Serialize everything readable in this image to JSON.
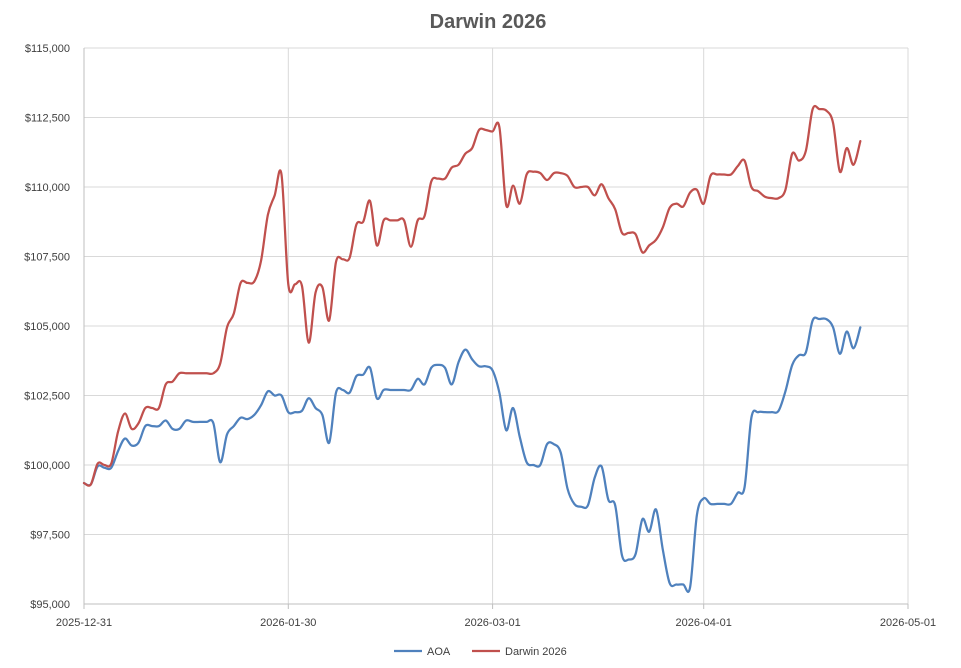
{
  "chart_data": {
    "type": "line",
    "title": "Darwin 2026",
    "xlabel": "",
    "ylabel": "",
    "x_ticks": [
      "2025-12-31",
      "2026-01-30",
      "2026-03-01",
      "2026-04-01",
      "2026-05-01"
    ],
    "y_ticks": [
      "$95,000",
      "$97,500",
      "$100,000",
      "$102,500",
      "$105,000",
      "$107,500",
      "$110,000",
      "$112,500",
      "$115,000"
    ],
    "xlim": [
      "2025-12-31",
      "2026-05-01"
    ],
    "ylim": [
      95000,
      115000
    ],
    "grid": true,
    "legend": "bottom",
    "colors": {
      "AOA": "#4f81bd",
      "Darwin 2026": "#c0504d"
    },
    "series": [
      {
        "name": "AOA",
        "points": [
          [
            "2025-12-31",
            99350
          ],
          [
            "2026-01-01",
            99300
          ],
          [
            "2026-01-02",
            99950
          ],
          [
            "2026-01-03",
            99900
          ],
          [
            "2026-01-04",
            99900
          ],
          [
            "2026-01-05",
            100500
          ],
          [
            "2026-01-06",
            100950
          ],
          [
            "2026-01-07",
            100700
          ],
          [
            "2026-01-08",
            100800
          ],
          [
            "2026-01-09",
            101400
          ],
          [
            "2026-01-10",
            101400
          ],
          [
            "2026-01-11",
            101400
          ],
          [
            "2026-01-12",
            101600
          ],
          [
            "2026-01-13",
            101300
          ],
          [
            "2026-01-14",
            101300
          ],
          [
            "2026-01-15",
            101600
          ],
          [
            "2026-01-16",
            101550
          ],
          [
            "2026-01-17",
            101550
          ],
          [
            "2026-01-18",
            101550
          ],
          [
            "2026-01-19",
            101500
          ],
          [
            "2026-01-20",
            100100
          ],
          [
            "2026-01-21",
            101100
          ],
          [
            "2026-01-22",
            101400
          ],
          [
            "2026-01-23",
            101700
          ],
          [
            "2026-01-24",
            101650
          ],
          [
            "2026-01-25",
            101800
          ],
          [
            "2026-01-26",
            102150
          ],
          [
            "2026-01-27",
            102650
          ],
          [
            "2026-01-28",
            102500
          ],
          [
            "2026-01-29",
            102500
          ],
          [
            "2026-01-30",
            101900
          ],
          [
            "2026-01-31",
            101900
          ],
          [
            "2026-02-01",
            101950
          ],
          [
            "2026-02-02",
            102400
          ],
          [
            "2026-02-03",
            102050
          ],
          [
            "2026-02-04",
            101800
          ],
          [
            "2026-02-05",
            100800
          ],
          [
            "2026-02-06",
            102600
          ],
          [
            "2026-02-07",
            102700
          ],
          [
            "2026-02-08",
            102600
          ],
          [
            "2026-02-09",
            103200
          ],
          [
            "2026-02-10",
            103250
          ],
          [
            "2026-02-11",
            103500
          ],
          [
            "2026-02-12",
            102400
          ],
          [
            "2026-02-13",
            102700
          ],
          [
            "2026-02-14",
            102700
          ],
          [
            "2026-02-15",
            102700
          ],
          [
            "2026-02-16",
            102700
          ],
          [
            "2026-02-17",
            102700
          ],
          [
            "2026-02-18",
            103100
          ],
          [
            "2026-02-19",
            102900
          ],
          [
            "2026-02-20",
            103500
          ],
          [
            "2026-02-21",
            103600
          ],
          [
            "2026-02-22",
            103500
          ],
          [
            "2026-02-23",
            102900
          ],
          [
            "2026-02-24",
            103700
          ],
          [
            "2026-02-25",
            104150
          ],
          [
            "2026-02-26",
            103800
          ],
          [
            "2026-02-27",
            103550
          ],
          [
            "2026-02-28",
            103550
          ],
          [
            "2026-03-01",
            103400
          ],
          [
            "2026-03-02",
            102600
          ],
          [
            "2026-03-03",
            101250
          ],
          [
            "2026-03-04",
            102050
          ],
          [
            "2026-03-05",
            101000
          ],
          [
            "2026-03-06",
            100100
          ],
          [
            "2026-03-07",
            100000
          ],
          [
            "2026-03-08",
            100000
          ],
          [
            "2026-03-09",
            100750
          ],
          [
            "2026-03-10",
            100750
          ],
          [
            "2026-03-11",
            100450
          ],
          [
            "2026-03-12",
            99150
          ],
          [
            "2026-03-13",
            98600
          ],
          [
            "2026-03-14",
            98500
          ],
          [
            "2026-03-15",
            98550
          ],
          [
            "2026-03-16",
            99550
          ],
          [
            "2026-03-17",
            99950
          ],
          [
            "2026-03-18",
            98750
          ],
          [
            "2026-03-19",
            98550
          ],
          [
            "2026-03-20",
            96750
          ],
          [
            "2026-03-21",
            96600
          ],
          [
            "2026-03-22",
            96800
          ],
          [
            "2026-03-23",
            98050
          ],
          [
            "2026-03-24",
            97600
          ],
          [
            "2026-03-25",
            98400
          ],
          [
            "2026-03-26",
            96950
          ],
          [
            "2026-03-27",
            95750
          ],
          [
            "2026-03-28",
            95700
          ],
          [
            "2026-03-29",
            95700
          ],
          [
            "2026-03-30",
            95600
          ],
          [
            "2026-03-31",
            98200
          ],
          [
            "2026-04-01",
            98800
          ],
          [
            "2026-04-02",
            98600
          ],
          [
            "2026-04-03",
            98600
          ],
          [
            "2026-04-04",
            98600
          ],
          [
            "2026-04-05",
            98600
          ],
          [
            "2026-04-06",
            99000
          ],
          [
            "2026-04-07",
            99200
          ],
          [
            "2026-04-08",
            101700
          ],
          [
            "2026-04-09",
            101900
          ],
          [
            "2026-04-10",
            101900
          ],
          [
            "2026-04-11",
            101900
          ],
          [
            "2026-04-12",
            101950
          ],
          [
            "2026-04-13",
            102650
          ],
          [
            "2026-04-14",
            103600
          ],
          [
            "2026-04-15",
            103950
          ],
          [
            "2026-04-16",
            104050
          ],
          [
            "2026-04-17",
            105200
          ],
          [
            "2026-04-18",
            105250
          ],
          [
            "2026-04-19",
            105250
          ],
          [
            "2026-04-20",
            104950
          ],
          [
            "2026-04-21",
            104000
          ],
          [
            "2026-04-22",
            104800
          ],
          [
            "2026-04-23",
            104200
          ],
          [
            "2026-04-24",
            104950
          ]
        ]
      },
      {
        "name": "Darwin 2026",
        "points": [
          [
            "2025-12-31",
            99350
          ],
          [
            "2026-01-01",
            99300
          ],
          [
            "2026-01-02",
            100050
          ],
          [
            "2026-01-03",
            100000
          ],
          [
            "2026-01-04",
            100050
          ],
          [
            "2026-01-05",
            101200
          ],
          [
            "2026-01-06",
            101850
          ],
          [
            "2026-01-07",
            101300
          ],
          [
            "2026-01-08",
            101500
          ],
          [
            "2026-01-09",
            102050
          ],
          [
            "2026-01-10",
            102050
          ],
          [
            "2026-01-11",
            102050
          ],
          [
            "2026-01-12",
            102900
          ],
          [
            "2026-01-13",
            103000
          ],
          [
            "2026-01-14",
            103300
          ],
          [
            "2026-01-15",
            103300
          ],
          [
            "2026-01-16",
            103300
          ],
          [
            "2026-01-17",
            103300
          ],
          [
            "2026-01-18",
            103300
          ],
          [
            "2026-01-19",
            103300
          ],
          [
            "2026-01-20",
            103650
          ],
          [
            "2026-01-21",
            104950
          ],
          [
            "2026-01-22",
            105450
          ],
          [
            "2026-01-23",
            106550
          ],
          [
            "2026-01-24",
            106550
          ],
          [
            "2026-01-25",
            106600
          ],
          [
            "2026-01-26",
            107350
          ],
          [
            "2026-01-27",
            109000
          ],
          [
            "2026-01-28",
            109700
          ],
          [
            "2026-01-29",
            110450
          ],
          [
            "2026-01-30",
            106500
          ],
          [
            "2026-01-31",
            106500
          ],
          [
            "2026-02-01",
            106450
          ],
          [
            "2026-02-02",
            104400
          ],
          [
            "2026-02-03",
            106200
          ],
          [
            "2026-02-04",
            106400
          ],
          [
            "2026-02-05",
            105200
          ],
          [
            "2026-02-06",
            107300
          ],
          [
            "2026-02-07",
            107400
          ],
          [
            "2026-02-08",
            107450
          ],
          [
            "2026-02-09",
            108650
          ],
          [
            "2026-02-10",
            108750
          ],
          [
            "2026-02-11",
            109500
          ],
          [
            "2026-02-12",
            107900
          ],
          [
            "2026-02-13",
            108800
          ],
          [
            "2026-02-14",
            108800
          ],
          [
            "2026-02-15",
            108800
          ],
          [
            "2026-02-16",
            108800
          ],
          [
            "2026-02-17",
            107850
          ],
          [
            "2026-02-18",
            108800
          ],
          [
            "2026-02-19",
            108950
          ],
          [
            "2026-02-20",
            110200
          ],
          [
            "2026-02-21",
            110300
          ],
          [
            "2026-02-22",
            110300
          ],
          [
            "2026-02-23",
            110700
          ],
          [
            "2026-02-24",
            110800
          ],
          [
            "2026-02-25",
            111200
          ],
          [
            "2026-02-26",
            111400
          ],
          [
            "2026-02-27",
            112050
          ],
          [
            "2026-02-28",
            112050
          ],
          [
            "2026-03-01",
            112000
          ],
          [
            "2026-03-02",
            112150
          ],
          [
            "2026-03-03",
            109350
          ],
          [
            "2026-03-04",
            110050
          ],
          [
            "2026-03-05",
            109400
          ],
          [
            "2026-03-06",
            110450
          ],
          [
            "2026-03-07",
            110550
          ],
          [
            "2026-03-08",
            110500
          ],
          [
            "2026-03-09",
            110250
          ],
          [
            "2026-03-10",
            110500
          ],
          [
            "2026-03-11",
            110500
          ],
          [
            "2026-03-12",
            110400
          ],
          [
            "2026-03-13",
            110000
          ],
          [
            "2026-03-14",
            110000
          ],
          [
            "2026-03-15",
            110000
          ],
          [
            "2026-03-16",
            109700
          ],
          [
            "2026-03-17",
            110100
          ],
          [
            "2026-03-18",
            109600
          ],
          [
            "2026-03-19",
            109200
          ],
          [
            "2026-03-20",
            108350
          ],
          [
            "2026-03-21",
            108350
          ],
          [
            "2026-03-22",
            108300
          ],
          [
            "2026-03-23",
            107650
          ],
          [
            "2026-03-24",
            107900
          ],
          [
            "2026-03-25",
            108100
          ],
          [
            "2026-03-26",
            108550
          ],
          [
            "2026-03-27",
            109250
          ],
          [
            "2026-03-28",
            109400
          ],
          [
            "2026-03-29",
            109300
          ],
          [
            "2026-03-30",
            109800
          ],
          [
            "2026-03-31",
            109900
          ],
          [
            "2026-04-01",
            109400
          ],
          [
            "2026-04-02",
            110400
          ],
          [
            "2026-04-03",
            110450
          ],
          [
            "2026-04-04",
            110450
          ],
          [
            "2026-04-05",
            110450
          ],
          [
            "2026-04-06",
            110750
          ],
          [
            "2026-04-07",
            110950
          ],
          [
            "2026-04-08",
            110000
          ],
          [
            "2026-04-09",
            109850
          ],
          [
            "2026-04-10",
            109650
          ],
          [
            "2026-04-11",
            109600
          ],
          [
            "2026-04-12",
            109600
          ],
          [
            "2026-04-13",
            109900
          ],
          [
            "2026-04-14",
            111200
          ],
          [
            "2026-04-15",
            110950
          ],
          [
            "2026-04-16",
            111300
          ],
          [
            "2026-04-17",
            112800
          ],
          [
            "2026-04-18",
            112800
          ],
          [
            "2026-04-19",
            112750
          ],
          [
            "2026-04-20",
            112300
          ],
          [
            "2026-04-21",
            110550
          ],
          [
            "2026-04-22",
            111400
          ],
          [
            "2026-04-23",
            110800
          ],
          [
            "2026-04-24",
            111650
          ]
        ]
      }
    ]
  }
}
